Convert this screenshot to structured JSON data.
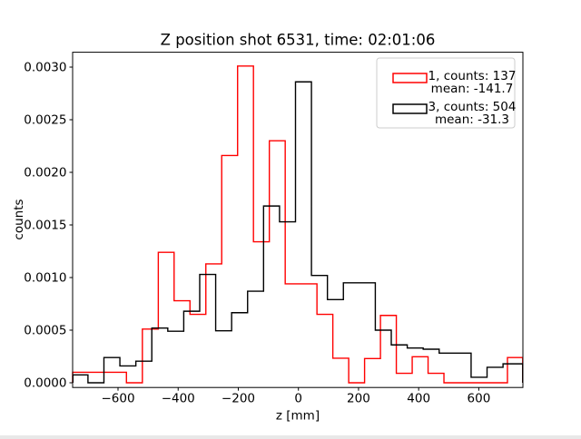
{
  "title": "Z position shot 6531, time: 02:01:06",
  "xlabel": "z [mm]",
  "ylabel": "counts",
  "legend": {
    "entries": [
      {
        "series": "1",
        "line1": "1, counts: 137",
        "line2": "mean: -141.7",
        "color": "#ff0000"
      },
      {
        "series": "3",
        "line1": "3, counts: 504",
        "line2": "mean: -31.3",
        "color": "#000000"
      }
    ]
  },
  "chart_data": {
    "type": "histogram-step",
    "title": "Z position shot 6531, time: 02:01:06",
    "xlabel": "z [mm]",
    "ylabel": "counts",
    "xlim": [
      -751,
      746.7
    ],
    "ylim": [
      -4.48e-05,
      0.0031414
    ],
    "grid": false,
    "legend_position": "upper right",
    "xticks": {
      "values": [
        -600,
        -400,
        -200,
        0,
        200,
        400,
        600
      ],
      "labels": [
        "−600",
        "−400",
        "−200",
        "0",
        "200",
        "400",
        "600"
      ]
    },
    "yticks": {
      "values": [
        0.0,
        0.0005,
        0.001,
        0.0015,
        0.002,
        0.0025,
        0.003
      ],
      "labels": [
        "0.0000",
        "0.0005",
        "0.0010",
        "0.0015",
        "0.0020",
        "0.0025",
        "0.0030"
      ]
    },
    "series": [
      {
        "name": "1",
        "counts": 137,
        "mean": -141.7,
        "color": "#ff0000",
        "bin_edges": [
          -751,
          -572,
          -519,
          -466,
          -413.5,
          -360.7,
          -307.9,
          -255.1,
          -202.3,
          -149.5,
          -96.7,
          -43.9,
          61.7,
          114.5,
          167.3,
          220.1,
          272.9,
          325.7,
          378.5,
          431.3,
          484.1,
          695.3,
          746
        ],
        "values": [
          0.0001,
          0,
          0.00051,
          0.00124,
          0.00078,
          0.00065,
          0.00113,
          0.00216,
          0.00301,
          0.00134,
          0.0023,
          0.00094,
          0.00065,
          0.000233,
          0,
          0.00023,
          0.00064,
          9e-05,
          0.000247,
          9e-05,
          0,
          0.00024
        ]
      },
      {
        "name": "3",
        "counts": 504,
        "mean": -31.3,
        "color": "#000000",
        "bin_edges": [
          -750,
          -700,
          -646.9,
          -593.8,
          -540.7,
          -487.6,
          -434.5,
          -381.4,
          -328.3,
          -275.2,
          -222.1,
          -169,
          -115.9,
          -62.8,
          -9.7,
          43.4,
          96.5,
          149.6,
          255.8,
          308.9,
          362,
          415.1,
          468.2,
          574.4,
          627.5,
          680.6,
          746
        ],
        "values": [
          7.5e-05,
          0,
          0.00024,
          0.00016,
          0.000205,
          0.00052,
          0.00049,
          0.00068,
          0.00103,
          0.000494,
          0.000666,
          0.00087,
          0.00168,
          0.00153,
          0.00286,
          0.00102,
          0.00079,
          0.00095,
          0.0005,
          0.00036,
          0.00033,
          0.000319,
          0.000282,
          5.2e-05,
          0.000147,
          0.00018
        ]
      }
    ]
  }
}
